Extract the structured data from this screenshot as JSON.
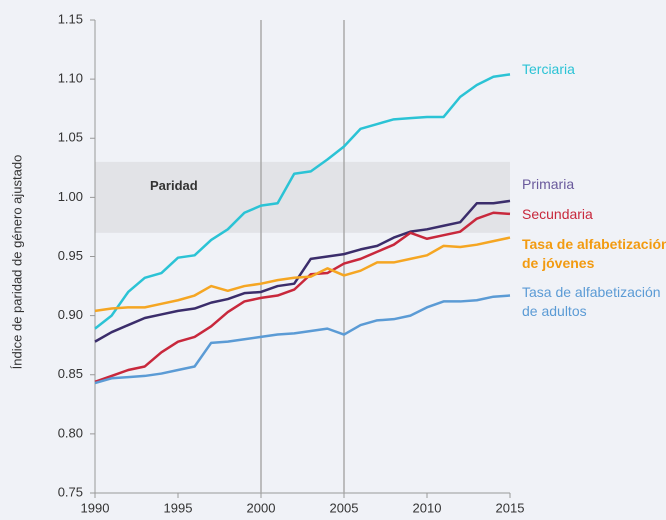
{
  "chart_data": {
    "type": "line",
    "y_label": "Índice de paridad de género ajustado",
    "band": {
      "label": "Paridad",
      "range": [
        0.97,
        1.03
      ]
    },
    "vlines": [
      2000,
      2005
    ],
    "x": [
      1990,
      1991,
      1992,
      1993,
      1994,
      1995,
      1996,
      1997,
      1998,
      1999,
      2000,
      2001,
      2002,
      2003,
      2004,
      2005,
      2006,
      2007,
      2008,
      2009,
      2010,
      2011,
      2012,
      2013,
      2014,
      2015
    ],
    "xlim": [
      1990,
      2015
    ],
    "xticks": [
      1990,
      1995,
      2000,
      2005,
      2010,
      2015
    ],
    "ylim": [
      0.75,
      1.15
    ],
    "yticks": [
      0.75,
      {
        "value": 0.8,
        "label": "0.80"
      },
      0.85,
      {
        "value": 0.9,
        "label": "0.90"
      },
      0.95,
      {
        "value": 1.0,
        "label": "1.00"
      },
      1.05,
      {
        "value": 1.1,
        "label": "1.10"
      },
      1.15
    ],
    "series": [
      {
        "name": "Terciaria",
        "color": "#2bc3d5",
        "values": [
          0.889,
          0.9,
          0.92,
          0.932,
          0.936,
          0.949,
          0.951,
          0.964,
          0.973,
          0.987,
          0.993,
          0.995,
          1.02,
          1.022,
          1.032,
          1.043,
          1.058,
          1.062,
          1.066,
          1.067,
          1.068,
          1.068,
          1.085,
          1.095,
          1.102,
          1.104
        ]
      },
      {
        "name": "Primaria",
        "color": "#3b2d6b",
        "values": [
          0.878,
          0.886,
          0.892,
          0.898,
          0.901,
          0.904,
          0.906,
          0.911,
          0.914,
          0.919,
          0.92,
          0.925,
          0.927,
          0.948,
          0.95,
          0.952,
          0.956,
          0.959,
          0.966,
          0.971,
          0.973,
          0.976,
          0.979,
          0.995,
          0.995,
          0.997
        ]
      },
      {
        "name": "Secundaria",
        "color": "#c8283c",
        "values": [
          0.844,
          0.849,
          0.854,
          0.857,
          0.869,
          0.878,
          0.882,
          0.891,
          0.903,
          0.912,
          0.915,
          0.917,
          0.922,
          0.935,
          0.936,
          0.944,
          0.948,
          0.954,
          0.96,
          0.97,
          0.965,
          0.968,
          0.971,
          0.982,
          0.987,
          0.986
        ]
      },
      {
        "name": "Tasa de alfabetización de jóvenes",
        "color": "#f5a623",
        "values": [
          0.904,
          0.906,
          0.907,
          0.907,
          0.91,
          0.913,
          0.917,
          0.925,
          0.921,
          0.925,
          0.927,
          0.93,
          0.932,
          0.933,
          0.94,
          0.934,
          0.938,
          0.945,
          0.945,
          0.948,
          0.951,
          0.959,
          0.958,
          0.96,
          0.963,
          0.966
        ]
      },
      {
        "name": "Tasa de alfabetización de adultos",
        "color": "#5b9bd5",
        "values": [
          0.843,
          0.847,
          0.848,
          0.849,
          0.851,
          0.854,
          0.857,
          0.877,
          0.878,
          0.88,
          0.882,
          0.884,
          0.885,
          0.887,
          0.889,
          0.884,
          0.892,
          0.896,
          0.897,
          0.9,
          0.907,
          0.912,
          0.912,
          0.913,
          0.916,
          0.917
        ]
      }
    ]
  }
}
